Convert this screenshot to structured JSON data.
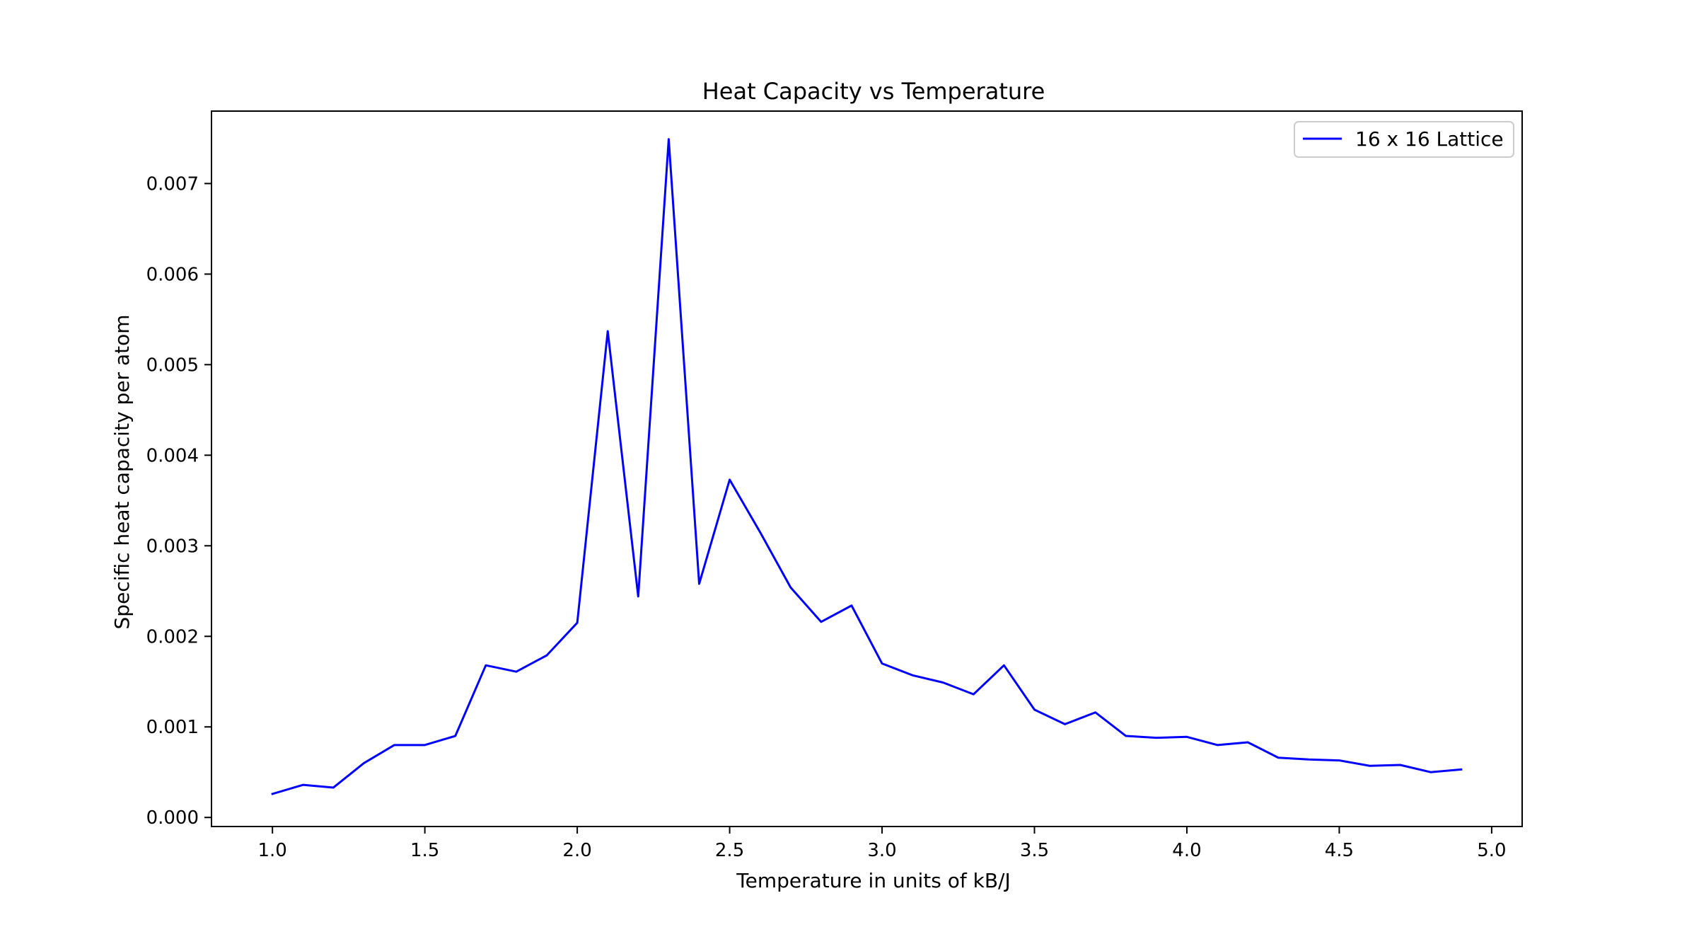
{
  "chart_data": {
    "type": "line",
    "title": "Heat Capacity vs Temperature",
    "xlabel": "Temperature in units of kB/J",
    "ylabel": "Specific heat capacity per atom",
    "xlim": [
      0.8,
      5.1
    ],
    "ylim": [
      -0.0001,
      0.0078
    ],
    "xticks": [
      1.0,
      1.5,
      2.0,
      2.5,
      3.0,
      3.5,
      4.0,
      4.5,
      5.0
    ],
    "xtick_labels": [
      "1.0",
      "1.5",
      "2.0",
      "2.5",
      "3.0",
      "3.5",
      "4.0",
      "4.5",
      "5.0"
    ],
    "yticks": [
      0.0,
      0.001,
      0.002,
      0.003,
      0.004,
      0.005,
      0.006,
      0.007
    ],
    "ytick_labels": [
      "0.000",
      "0.001",
      "0.002",
      "0.003",
      "0.004",
      "0.005",
      "0.006",
      "0.007"
    ],
    "grid": false,
    "legend_position": "top-right",
    "series": [
      {
        "name": "16 x 16 Lattice",
        "color": "#0000ff",
        "x": [
          1.0,
          1.1,
          1.2,
          1.3,
          1.4,
          1.5,
          1.6,
          1.7,
          1.8,
          1.9,
          2.0,
          2.1,
          2.2,
          2.3,
          2.4,
          2.5,
          2.6,
          2.7,
          2.8,
          2.9,
          3.0,
          3.1,
          3.2,
          3.3,
          3.4,
          3.5,
          3.6,
          3.7,
          3.8,
          3.9,
          4.0,
          4.1,
          4.2,
          4.3,
          4.4,
          4.5,
          4.6,
          4.7,
          4.8,
          4.9
        ],
        "y": [
          0.00026,
          0.00036,
          0.00033,
          0.0006,
          0.0008,
          0.0008,
          0.0009,
          0.00168,
          0.00161,
          0.00179,
          0.00215,
          0.00537,
          0.00244,
          0.00749,
          0.00258,
          0.00373,
          0.00315,
          0.00254,
          0.00216,
          0.00234,
          0.0017,
          0.00157,
          0.00149,
          0.00136,
          0.00168,
          0.00119,
          0.00103,
          0.00116,
          0.0009,
          0.00088,
          0.00089,
          0.0008,
          0.00083,
          0.00066,
          0.00064,
          0.00063,
          0.00057,
          0.00058,
          0.0005,
          0.00053
        ]
      }
    ]
  }
}
